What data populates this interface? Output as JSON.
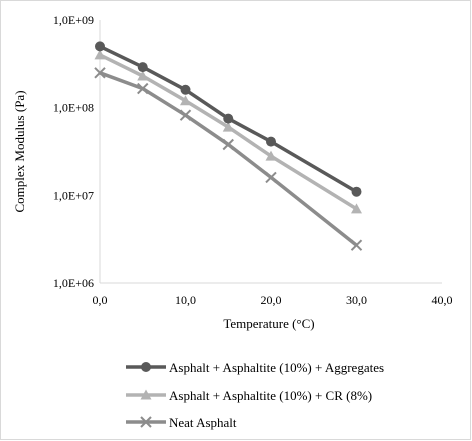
{
  "chart_data": {
    "type": "line",
    "title": "",
    "xlabel": "Temperature (°C)",
    "ylabel": "Complex Modulus (Pa)",
    "xlim": [
      0,
      40
    ],
    "ylim": [
      1000000,
      1000000000
    ],
    "yscale": "log",
    "x_tick_labels": [
      "0,0",
      "10,0",
      "20,0",
      "30,0",
      "40,0"
    ],
    "x_tick_values": [
      0,
      10,
      20,
      30,
      40
    ],
    "y_tick_labels": [
      "1,0E+06",
      "1,0E+07",
      "1,0E+08",
      "1,0E+09"
    ],
    "y_tick_values": [
      1000000,
      10000000,
      100000000,
      1000000000
    ],
    "grid": false,
    "legend_position": "bottom",
    "series": [
      {
        "name": "Asphalt + Asphaltite (10%) + Aggregates",
        "color": "#595959",
        "marker": "circle",
        "x": [
          0,
          5,
          10,
          15,
          20,
          30
        ],
        "y": [
          500000000,
          290000000,
          160000000,
          75000000,
          41000000,
          11000000
        ]
      },
      {
        "name": "Asphalt + Asphaltite (10%) + CR (8%)",
        "color": "#b3b3b3",
        "marker": "triangle",
        "x": [
          0,
          5,
          10,
          15,
          20,
          30
        ],
        "y": [
          400000000,
          230000000,
          120000000,
          60000000,
          28000000,
          7000000
        ]
      },
      {
        "name": "Neat Asphalt",
        "color": "#8c8c8c",
        "marker": "x",
        "x": [
          0,
          5,
          10,
          15,
          20,
          30
        ],
        "y": [
          250000000,
          165000000,
          82000000,
          38000000,
          16000000,
          2700000
        ]
      }
    ]
  }
}
